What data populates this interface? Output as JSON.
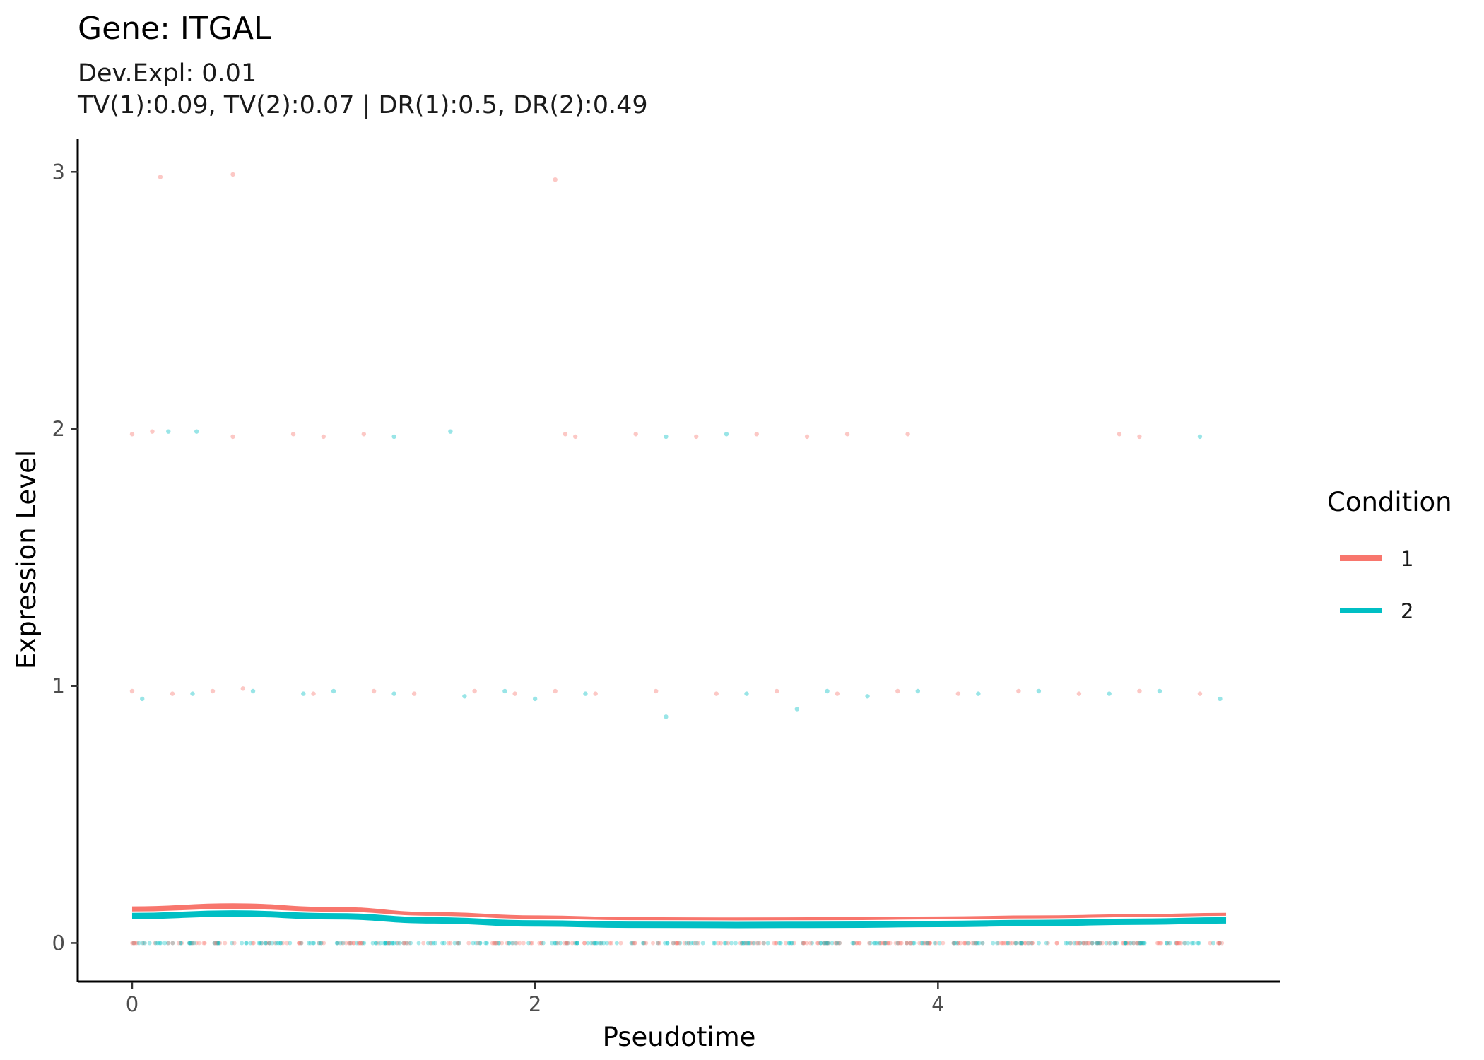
{
  "chart_data": {
    "type": "scatter",
    "title": "Gene: ITGAL",
    "subtitle_lines": [
      "Dev.Expl: 0.01",
      "TV(1):0.09, TV(2):0.07 | DR(1):0.5, DR(2):0.49"
    ],
    "xlabel": "Pseudotime",
    "ylabel": "Expression Level",
    "xlim": [
      -0.27,
      5.7
    ],
    "ylim": [
      -0.15,
      3.13
    ],
    "x_ticks": [
      0,
      2,
      4
    ],
    "y_ticks": [
      0,
      1,
      2,
      3
    ],
    "grid": false,
    "legend": {
      "title": "Condition",
      "position": "right",
      "entries": [
        {
          "label": "1",
          "color": "#F8766D"
        },
        {
          "label": "2",
          "color": "#00BFC4"
        }
      ]
    },
    "series": [
      {
        "name": "1",
        "color": "#F8766D",
        "fitted_curve": {
          "x": [
            0,
            0.5,
            1.0,
            1.5,
            2.0,
            2.5,
            3.0,
            3.5,
            4.0,
            4.5,
            5.0,
            5.43
          ],
          "y": [
            0.13,
            0.142,
            0.128,
            0.108,
            0.095,
            0.088,
            0.087,
            0.088,
            0.091,
            0.095,
            0.1,
            0.105
          ]
        },
        "points": {
          "x": [
            0.14,
            0.5,
            2.1,
            0.0,
            0.1,
            0.5,
            0.8,
            0.95,
            1.15,
            2.15,
            2.2,
            2.5,
            2.8,
            3.1,
            3.35,
            3.55,
            3.85,
            4.9,
            5.0,
            0.0,
            0.2,
            0.4,
            0.55,
            0.9,
            1.2,
            1.4,
            1.7,
            1.9,
            2.1,
            2.3,
            2.6,
            2.9,
            3.2,
            3.5,
            3.8,
            4.1,
            4.4,
            4.7,
            5.0,
            5.3
          ],
          "y": [
            2.98,
            2.99,
            2.97,
            1.98,
            1.99,
            1.97,
            1.98,
            1.97,
            1.98,
            1.98,
            1.97,
            1.98,
            1.97,
            1.98,
            1.97,
            1.98,
            1.98,
            1.98,
            1.97,
            0.98,
            0.97,
            0.98,
            0.99,
            0.97,
            0.98,
            0.97,
            0.98,
            0.97,
            0.98,
            0.97,
            0.98,
            0.97,
            0.98,
            0.97,
            0.98,
            0.97,
            0.98,
            0.97,
            0.98,
            0.97
          ]
        }
      },
      {
        "name": "2",
        "color": "#00BFC4",
        "fitted_curve": {
          "x": [
            0,
            0.5,
            1.0,
            1.5,
            2.0,
            2.5,
            3.0,
            3.5,
            4.0,
            4.5,
            5.0,
            5.43
          ],
          "y": [
            0.105,
            0.115,
            0.104,
            0.088,
            0.076,
            0.071,
            0.07,
            0.071,
            0.074,
            0.078,
            0.083,
            0.088
          ]
        },
        "points": {
          "x": [
            0.18,
            0.32,
            1.3,
            1.58,
            2.65,
            2.95,
            5.3,
            0.05,
            0.3,
            0.6,
            0.85,
            1.0,
            1.3,
            1.65,
            1.85,
            2.0,
            2.25,
            2.65,
            3.05,
            3.3,
            3.45,
            3.65,
            3.9,
            4.2,
            4.5,
            4.85,
            5.1,
            5.4
          ],
          "y": [
            1.99,
            1.99,
            1.97,
            1.99,
            1.97,
            1.98,
            1.97,
            0.95,
            0.97,
            0.98,
            0.97,
            0.98,
            0.97,
            0.96,
            0.98,
            0.95,
            0.97,
            0.88,
            0.97,
            0.91,
            0.98,
            0.96,
            0.98,
            0.97,
            0.98,
            0.97,
            0.98,
            0.95
          ]
        }
      }
    ],
    "zero_band": {
      "y": 0,
      "x_from": 0,
      "x_to": 5.43
    }
  }
}
